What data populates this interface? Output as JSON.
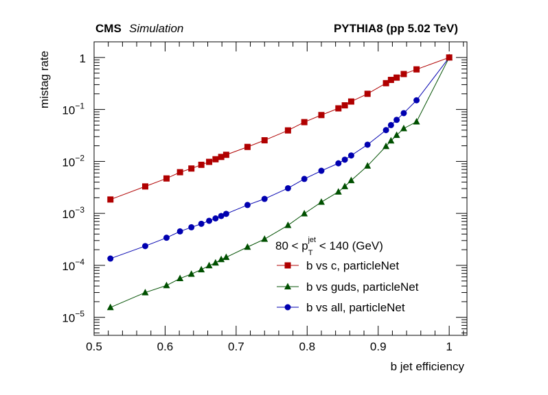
{
  "header": {
    "experiment": "CMS",
    "status": "Simulation",
    "sample": "PYTHIA8 (pp 5.02 TeV)"
  },
  "chart_data": {
    "type": "line",
    "xlabel": "b jet efficiency",
    "ylabel": "mistag rate",
    "xlim": [
      0.5,
      1.025
    ],
    "ylim": [
      4.5e-06,
      2.0
    ],
    "yscale": "log",
    "x_ticks": [
      {
        "value": 0.5,
        "label": "0.5"
      },
      {
        "value": 0.6,
        "label": "0.6"
      },
      {
        "value": 0.7,
        "label": "0.7"
      },
      {
        "value": 0.8,
        "label": "0.8"
      },
      {
        "value": 0.9,
        "label": "0.9"
      },
      {
        "value": 1.0,
        "label": "1"
      }
    ],
    "y_ticks": [
      {
        "value": 1,
        "base": "1",
        "exp": ""
      },
      {
        "value": 0.1,
        "base": "10",
        "exp": "−1"
      },
      {
        "value": 0.01,
        "base": "10",
        "exp": "−2"
      },
      {
        "value": 0.001,
        "base": "10",
        "exp": "−3"
      },
      {
        "value": 0.0001,
        "base": "10",
        "exp": "−4"
      },
      {
        "value": 1e-05,
        "base": "10",
        "exp": "−5"
      }
    ],
    "grid": false,
    "legend": {
      "placement": "bottom-right",
      "header": {
        "prefix": "80 < p",
        "sub": "T",
        "sup": "jet",
        "suffix": " < 140 (GeV)"
      }
    },
    "series": [
      {
        "name": "b vs c, particleNet",
        "color": "#b00000",
        "marker": "square",
        "x": [
          0.523,
          0.572,
          0.602,
          0.621,
          0.637,
          0.651,
          0.662,
          0.671,
          0.679,
          0.686,
          0.716,
          0.74,
          0.773,
          0.796,
          0.82,
          0.844,
          0.853,
          0.862,
          0.885,
          0.911,
          0.918,
          0.926,
          0.936,
          0.954,
          1.0
        ],
        "y": [
          0.00185,
          0.0033,
          0.0047,
          0.0062,
          0.0073,
          0.0086,
          0.0098,
          0.011,
          0.0122,
          0.0134,
          0.019,
          0.0255,
          0.0395,
          0.057,
          0.078,
          0.105,
          0.12,
          0.142,
          0.2,
          0.32,
          0.37,
          0.41,
          0.48,
          0.59,
          1.0
        ]
      },
      {
        "name": "b vs guds, particleNet",
        "color": "#005000",
        "marker": "triangle",
        "x": [
          0.523,
          0.572,
          0.602,
          0.621,
          0.637,
          0.651,
          0.662,
          0.671,
          0.679,
          0.686,
          0.716,
          0.74,
          0.773,
          0.796,
          0.82,
          0.844,
          0.853,
          0.862,
          0.885,
          0.911,
          0.918,
          0.926,
          0.936,
          0.954,
          1.0
        ],
        "y": [
          1.55e-05,
          3e-05,
          4.1e-05,
          5.6e-05,
          6.8e-05,
          8.3e-05,
          9.9e-05,
          0.000112,
          0.00013,
          0.000143,
          0.000225,
          0.00032,
          0.00059,
          0.00099,
          0.00165,
          0.0026,
          0.0033,
          0.0043,
          0.0082,
          0.0195,
          0.025,
          0.032,
          0.043,
          0.058,
          1.0
        ]
      },
      {
        "name": "b vs all, particleNet",
        "color": "#0000b0",
        "marker": "circle",
        "x": [
          0.523,
          0.572,
          0.602,
          0.621,
          0.637,
          0.651,
          0.662,
          0.671,
          0.679,
          0.686,
          0.716,
          0.74,
          0.773,
          0.796,
          0.82,
          0.844,
          0.853,
          0.862,
          0.885,
          0.911,
          0.918,
          0.926,
          0.936,
          0.954,
          1.0
        ],
        "y": [
          0.000135,
          0.000235,
          0.00034,
          0.00045,
          0.00054,
          0.00063,
          0.00072,
          0.0008,
          0.00089,
          0.00098,
          0.00145,
          0.0019,
          0.00305,
          0.0046,
          0.0066,
          0.0092,
          0.0108,
          0.013,
          0.021,
          0.04,
          0.05,
          0.063,
          0.085,
          0.15,
          1.0
        ]
      }
    ]
  }
}
